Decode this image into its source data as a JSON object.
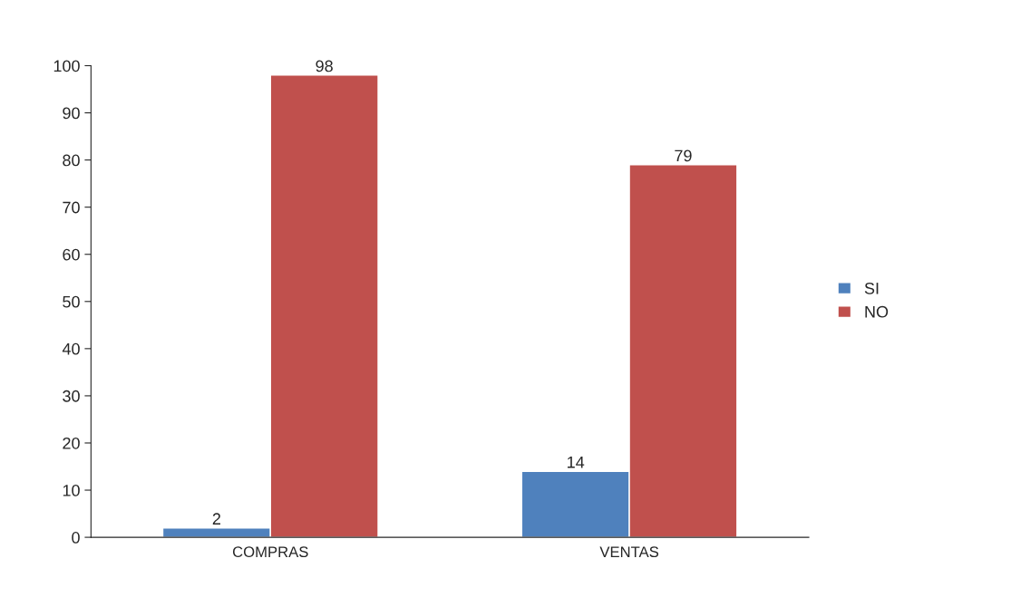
{
  "chart_data": {
    "type": "bar",
    "categories": [
      "COMPRAS",
      "VENTAS"
    ],
    "series": [
      {
        "name": "SI",
        "color": "#4f81bd",
        "values": [
          2,
          14
        ]
      },
      {
        "name": "NO",
        "color": "#c0504d",
        "values": [
          98,
          79
        ]
      }
    ],
    "ylim": [
      0,
      100
    ],
    "yticks": [
      0,
      10,
      20,
      30,
      40,
      50,
      60,
      70,
      80,
      90,
      100
    ],
    "data_labels": true,
    "legend": "right"
  }
}
